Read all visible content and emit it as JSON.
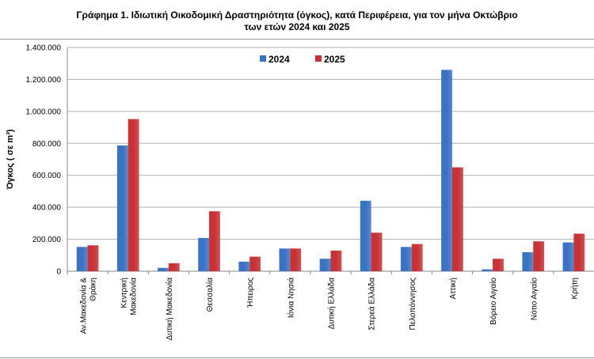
{
  "chart_data": {
    "type": "bar",
    "title_line1": "Γράφημα 1.  Ιδιωτική Οικοδομική Δραστηριότητα (όγκος), κατά Περιφέρεια, για τον μήνα Οκτώβριο",
    "title_line2": "των ετών 2024 και 2025",
    "ylabel": "Όγκος ( σε m³)",
    "xlabel": "",
    "ylim": [
      0,
      1400000
    ],
    "yticks": [
      0,
      200000,
      400000,
      600000,
      800000,
      1000000,
      1200000,
      1400000
    ],
    "ytick_labels": [
      "0",
      "200.000",
      "400.000",
      "600.000",
      "800.000",
      "1.000.000",
      "1.200.000",
      "1.400.000"
    ],
    "grid": true,
    "legend_position": "top-center",
    "categories": [
      [
        "Αν.Μακεδονία &",
        "Θράκη"
      ],
      [
        "Κεντρική",
        "Μακεδονία"
      ],
      [
        "Δυτική Μακεδονία"
      ],
      [
        "Θεσσαλία"
      ],
      [
        "Ήπειρος"
      ],
      [
        "Ιόνια Νησιά"
      ],
      [
        "Δυτική Ελλάδα"
      ],
      [
        "Στερεά Ελλάδα"
      ],
      [
        "Πελοπόννησος"
      ],
      [
        "Αττική"
      ],
      [
        "Βόρειο Αιγαίο"
      ],
      [
        "Νότιο Αιγαίο"
      ],
      [
        "Κρήτη"
      ]
    ],
    "series": [
      {
        "name": "2024",
        "color": "#3a73c4",
        "values": [
          152000,
          787000,
          21000,
          208000,
          60000,
          142000,
          78000,
          441000,
          152000,
          1260000,
          12000,
          119000,
          180000
        ]
      },
      {
        "name": "2025",
        "color": "#c93234",
        "values": [
          162000,
          952000,
          50000,
          375000,
          91000,
          142000,
          129000,
          241000,
          170000,
          650000,
          78000,
          187000,
          235000
        ]
      }
    ]
  }
}
